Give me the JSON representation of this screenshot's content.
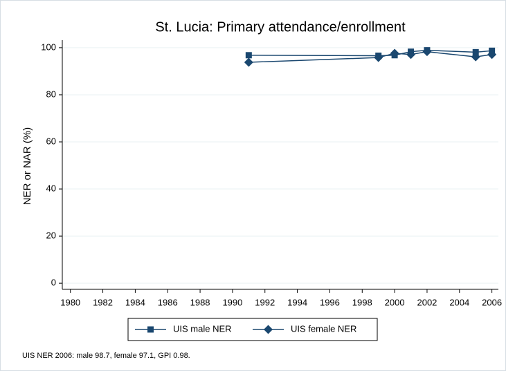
{
  "chart_data": {
    "type": "line",
    "title": "St. Lucia: Primary attendance/enrollment",
    "y_label": "NER or NAR (%)",
    "note": "UIS NER 2006: male 98.7, female 97.1, GPI 0.98.",
    "xlim": [
      1979.5,
      2006.4
    ],
    "ylim": [
      -2.6,
      103.2
    ],
    "xticks": [
      1980,
      1982,
      1984,
      1986,
      1988,
      1990,
      1992,
      1994,
      1996,
      1998,
      2000,
      2002,
      2004,
      2006
    ],
    "yticks": [
      0,
      20,
      40,
      60,
      80,
      100
    ],
    "grid": true,
    "series": [
      {
        "name": "UIS male NER",
        "color": "#1a476f",
        "marker": "square",
        "x": [
          1991,
          1999,
          2000,
          2001,
          2002,
          2005,
          2006
        ],
        "values": [
          96.8,
          96.6,
          96.8,
          98.3,
          98.9,
          98.1,
          98.7
        ]
      },
      {
        "name": "UIS female NER",
        "color": "#1a476f",
        "marker": "diamond",
        "x": [
          1991,
          1999,
          2000,
          2001,
          2002,
          2005,
          2006
        ],
        "values": [
          93.8,
          95.8,
          97.6,
          97.1,
          98.3,
          96.1,
          97.1
        ]
      }
    ]
  }
}
